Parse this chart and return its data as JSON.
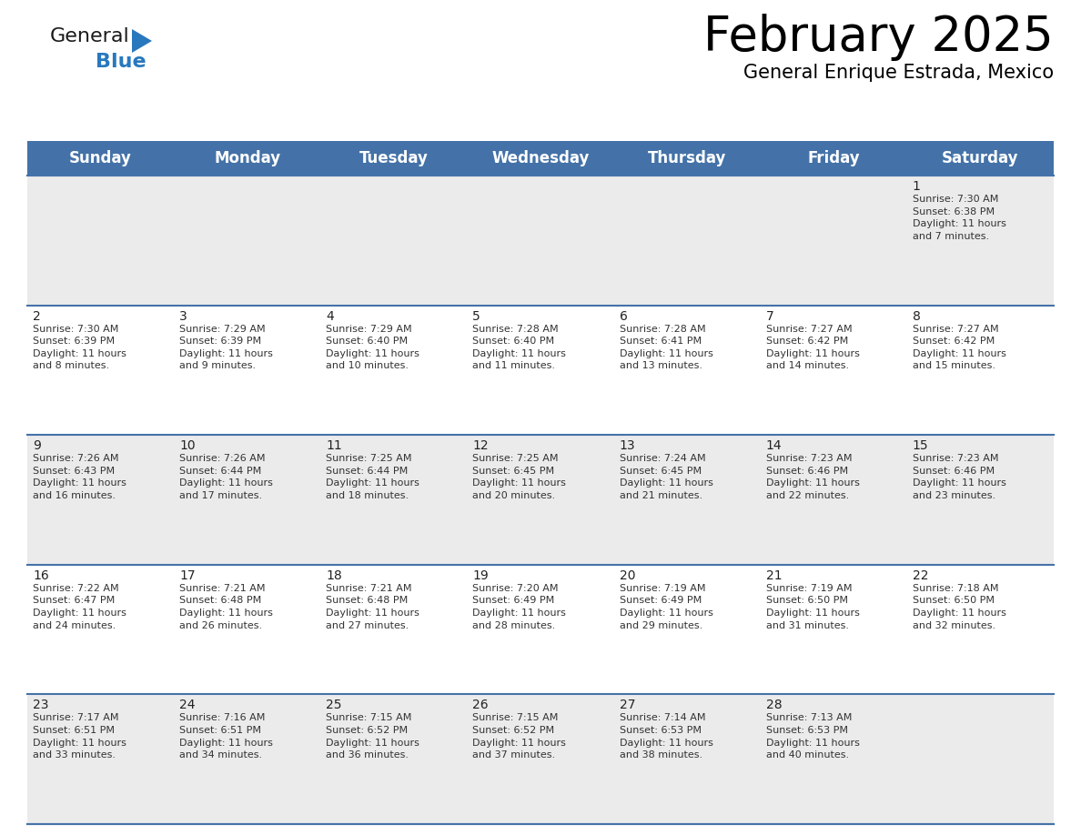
{
  "title": "February 2025",
  "subtitle": "General Enrique Estrada, Mexico",
  "header_color": "#4472A8",
  "header_text_color": "#FFFFFF",
  "cell_bg_gray": "#EBEBEB",
  "cell_bg_white": "#FFFFFF",
  "border_color": "#4472A8",
  "day_headers": [
    "Sunday",
    "Monday",
    "Tuesday",
    "Wednesday",
    "Thursday",
    "Friday",
    "Saturday"
  ],
  "title_fontsize": 38,
  "subtitle_fontsize": 15,
  "header_fontsize": 12,
  "day_num_fontsize": 10,
  "info_fontsize": 8,
  "logo_general_color": "#1a1a1a",
  "logo_blue_color": "#2878BE",
  "weeks": [
    [
      {
        "day": 0,
        "info": ""
      },
      {
        "day": 0,
        "info": ""
      },
      {
        "day": 0,
        "info": ""
      },
      {
        "day": 0,
        "info": ""
      },
      {
        "day": 0,
        "info": ""
      },
      {
        "day": 0,
        "info": ""
      },
      {
        "day": 1,
        "info": "Sunrise: 7:30 AM\nSunset: 6:38 PM\nDaylight: 11 hours\nand 7 minutes."
      }
    ],
    [
      {
        "day": 2,
        "info": "Sunrise: 7:30 AM\nSunset: 6:39 PM\nDaylight: 11 hours\nand 8 minutes."
      },
      {
        "day": 3,
        "info": "Sunrise: 7:29 AM\nSunset: 6:39 PM\nDaylight: 11 hours\nand 9 minutes."
      },
      {
        "day": 4,
        "info": "Sunrise: 7:29 AM\nSunset: 6:40 PM\nDaylight: 11 hours\nand 10 minutes."
      },
      {
        "day": 5,
        "info": "Sunrise: 7:28 AM\nSunset: 6:40 PM\nDaylight: 11 hours\nand 11 minutes."
      },
      {
        "day": 6,
        "info": "Sunrise: 7:28 AM\nSunset: 6:41 PM\nDaylight: 11 hours\nand 13 minutes."
      },
      {
        "day": 7,
        "info": "Sunrise: 7:27 AM\nSunset: 6:42 PM\nDaylight: 11 hours\nand 14 minutes."
      },
      {
        "day": 8,
        "info": "Sunrise: 7:27 AM\nSunset: 6:42 PM\nDaylight: 11 hours\nand 15 minutes."
      }
    ],
    [
      {
        "day": 9,
        "info": "Sunrise: 7:26 AM\nSunset: 6:43 PM\nDaylight: 11 hours\nand 16 minutes."
      },
      {
        "day": 10,
        "info": "Sunrise: 7:26 AM\nSunset: 6:44 PM\nDaylight: 11 hours\nand 17 minutes."
      },
      {
        "day": 11,
        "info": "Sunrise: 7:25 AM\nSunset: 6:44 PM\nDaylight: 11 hours\nand 18 minutes."
      },
      {
        "day": 12,
        "info": "Sunrise: 7:25 AM\nSunset: 6:45 PM\nDaylight: 11 hours\nand 20 minutes."
      },
      {
        "day": 13,
        "info": "Sunrise: 7:24 AM\nSunset: 6:45 PM\nDaylight: 11 hours\nand 21 minutes."
      },
      {
        "day": 14,
        "info": "Sunrise: 7:23 AM\nSunset: 6:46 PM\nDaylight: 11 hours\nand 22 minutes."
      },
      {
        "day": 15,
        "info": "Sunrise: 7:23 AM\nSunset: 6:46 PM\nDaylight: 11 hours\nand 23 minutes."
      }
    ],
    [
      {
        "day": 16,
        "info": "Sunrise: 7:22 AM\nSunset: 6:47 PM\nDaylight: 11 hours\nand 24 minutes."
      },
      {
        "day": 17,
        "info": "Sunrise: 7:21 AM\nSunset: 6:48 PM\nDaylight: 11 hours\nand 26 minutes."
      },
      {
        "day": 18,
        "info": "Sunrise: 7:21 AM\nSunset: 6:48 PM\nDaylight: 11 hours\nand 27 minutes."
      },
      {
        "day": 19,
        "info": "Sunrise: 7:20 AM\nSunset: 6:49 PM\nDaylight: 11 hours\nand 28 minutes."
      },
      {
        "day": 20,
        "info": "Sunrise: 7:19 AM\nSunset: 6:49 PM\nDaylight: 11 hours\nand 29 minutes."
      },
      {
        "day": 21,
        "info": "Sunrise: 7:19 AM\nSunset: 6:50 PM\nDaylight: 11 hours\nand 31 minutes."
      },
      {
        "day": 22,
        "info": "Sunrise: 7:18 AM\nSunset: 6:50 PM\nDaylight: 11 hours\nand 32 minutes."
      }
    ],
    [
      {
        "day": 23,
        "info": "Sunrise: 7:17 AM\nSunset: 6:51 PM\nDaylight: 11 hours\nand 33 minutes."
      },
      {
        "day": 24,
        "info": "Sunrise: 7:16 AM\nSunset: 6:51 PM\nDaylight: 11 hours\nand 34 minutes."
      },
      {
        "day": 25,
        "info": "Sunrise: 7:15 AM\nSunset: 6:52 PM\nDaylight: 11 hours\nand 36 minutes."
      },
      {
        "day": 26,
        "info": "Sunrise: 7:15 AM\nSunset: 6:52 PM\nDaylight: 11 hours\nand 37 minutes."
      },
      {
        "day": 27,
        "info": "Sunrise: 7:14 AM\nSunset: 6:53 PM\nDaylight: 11 hours\nand 38 minutes."
      },
      {
        "day": 28,
        "info": "Sunrise: 7:13 AM\nSunset: 6:53 PM\nDaylight: 11 hours\nand 40 minutes."
      },
      {
        "day": 0,
        "info": ""
      }
    ]
  ]
}
